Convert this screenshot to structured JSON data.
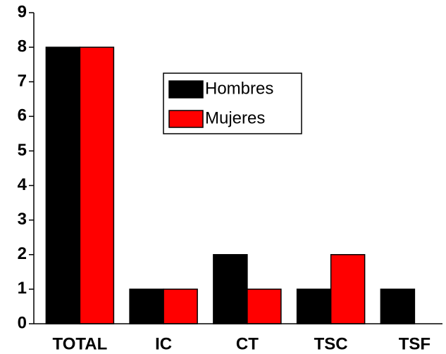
{
  "chart_data": {
    "type": "bar",
    "categories": [
      "TOTAL",
      "IC",
      "CT",
      "TSC",
      "TSF"
    ],
    "series": [
      {
        "name": "Hombres",
        "color": "#000000",
        "values": [
          8,
          1,
          2,
          1,
          1
        ]
      },
      {
        "name": "Mujeres",
        "color": "#ff0000",
        "values": [
          8,
          1,
          1,
          2,
          0
        ]
      }
    ],
    "ylim": [
      0,
      9
    ],
    "yticks": [
      0,
      1,
      2,
      3,
      4,
      5,
      6,
      7,
      8,
      9
    ],
    "grid": false
  }
}
